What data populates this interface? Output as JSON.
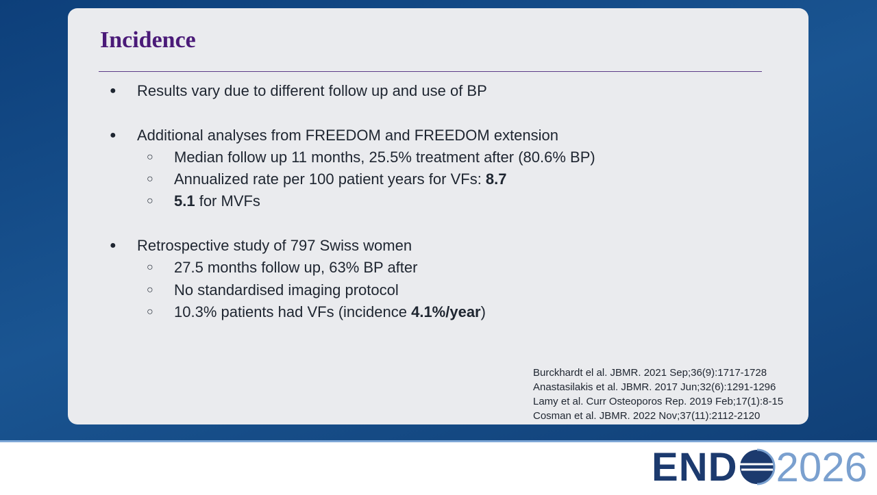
{
  "title": "Incidence",
  "bullets": [
    {
      "segments": [
        {
          "text": "Results vary due to different follow up and use of BP"
        }
      ]
    },
    {
      "segments": [
        {
          "text": "Additional analyses from FREEDOM and FREEDOM extension"
        }
      ],
      "subitems": [
        {
          "segments": [
            {
              "text": "Median follow up 11 months, 25.5% treatment after (80.6% BP)"
            }
          ]
        },
        {
          "segments": [
            {
              "text": "Annualized rate per 100 patient years for VFs: "
            },
            {
              "text": "8.7",
              "bold": true
            }
          ]
        },
        {
          "segments": [
            {
              "text": "5.1",
              "bold": true
            },
            {
              "text": " for MVFs"
            }
          ]
        }
      ]
    },
    {
      "segments": [
        {
          "text": "Retrospective study of 797 Swiss women"
        }
      ],
      "subitems": [
        {
          "segments": [
            {
              "text": "27.5 months follow up, 63% BP after"
            }
          ]
        },
        {
          "segments": [
            {
              "text": "No standardised imaging protocol"
            }
          ]
        },
        {
          "segments": [
            {
              "text": "10.3% patients had VFs (incidence "
            },
            {
              "text": "4.1%/year",
              "bold": true
            },
            {
              "text": ")"
            }
          ]
        }
      ]
    }
  ],
  "references": [
    "Burckhardt el al. JBMR. 2021 Sep;36(9):1717-1728",
    "Anastasilakis et al. JBMR. 2017 Jun;32(6):1291-1296",
    "Lamy et al. Curr Osteoporos Rep. 2019 Feb;17(1):8-15",
    "Cosman et al. JBMR. 2022 Nov;37(11):2112-2120"
  ],
  "logo": {
    "left": "END",
    "right": "2026"
  }
}
